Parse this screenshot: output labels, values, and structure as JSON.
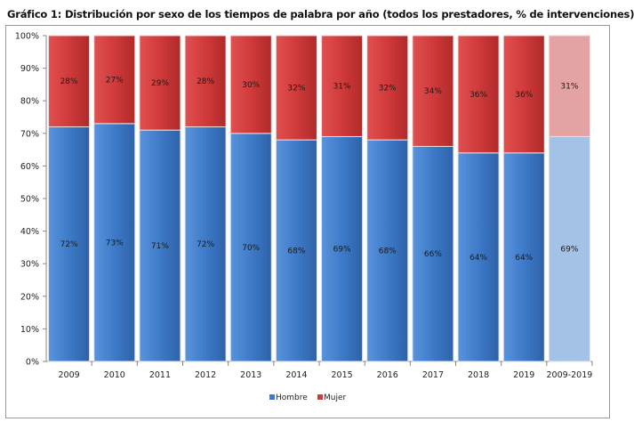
{
  "chart_data": {
    "type": "bar",
    "stacked": true,
    "title": "Gráfico 1: Distribución por sexo de los tiempos de palabra por año (todos los prestadores, % de intervenciones)",
    "categories": [
      "2009",
      "2010",
      "2011",
      "2012",
      "2013",
      "2014",
      "2015",
      "2016",
      "2017",
      "2018",
      "2019",
      "2009-2019"
    ],
    "series": [
      {
        "name": "Hombre",
        "color": "#3d7ac8",
        "values": [
          72,
          73,
          71,
          72,
          70,
          68,
          69,
          68,
          66,
          64,
          64,
          69
        ]
      },
      {
        "name": "Mujer",
        "color": "#d03a3a",
        "values": [
          28,
          27,
          29,
          28,
          30,
          32,
          31,
          32,
          34,
          36,
          36,
          31
        ]
      }
    ],
    "highlight_category_colors": {
      "Hombre": "#a4c1e6",
      "Mujer": "#e4a3a3"
    },
    "ylim": [
      0,
      100
    ],
    "yticks": [
      "0%",
      "10%",
      "20%",
      "30%",
      "40%",
      "50%",
      "60%",
      "70%",
      "80%",
      "90%",
      "100%"
    ],
    "data_label_suffix": "%",
    "legend": "bottom",
    "grid": false
  }
}
